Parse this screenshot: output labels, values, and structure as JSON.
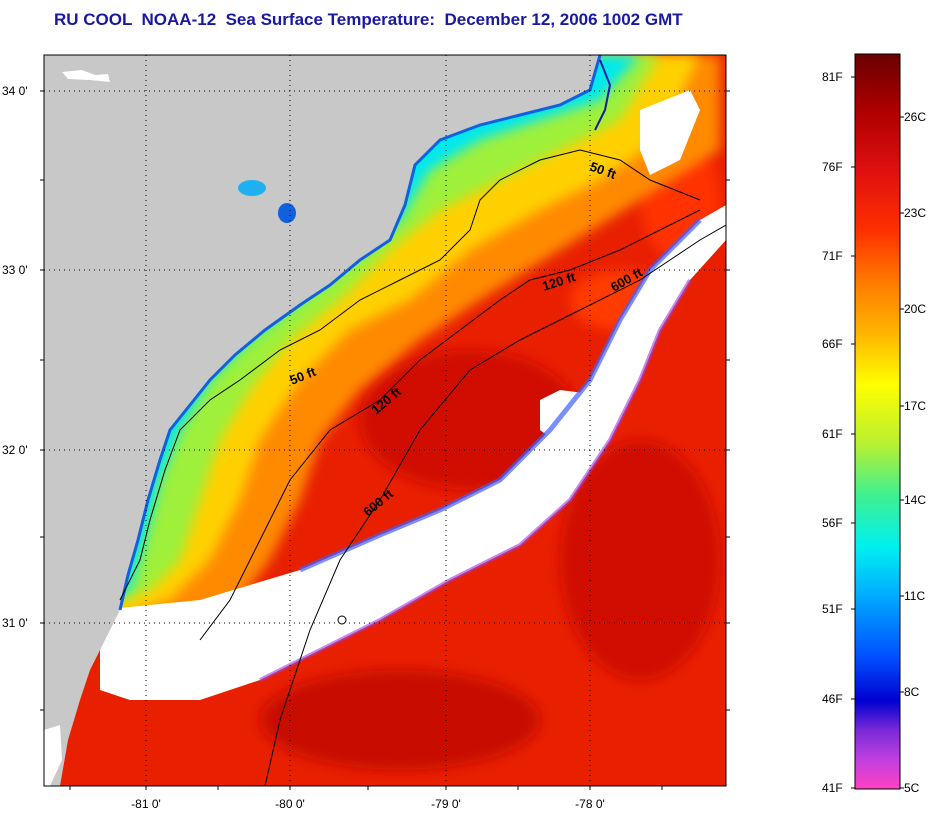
{
  "title": "RU COOL  NOAA-12  Sea Surface Temperature:  December 12, 2006 1002 GMT",
  "map": {
    "lat_labels": [
      "34 0'",
      "33 0'",
      "32 0'",
      "31 0'"
    ],
    "lon_labels": [
      "-81 0'",
      "-80 0'",
      "-79 0'",
      "-78 0'"
    ],
    "contours": [
      {
        "name": "contour-50ft-north",
        "label": "50 ft"
      },
      {
        "name": "contour-50ft-south",
        "label": "50 ft"
      },
      {
        "name": "contour-120ft-north",
        "label": "120 ft"
      },
      {
        "name": "contour-120ft-south",
        "label": "120 ft"
      },
      {
        "name": "contour-600ft-north",
        "label": "600 ft"
      },
      {
        "name": "contour-600ft-south",
        "label": "600 ft"
      }
    ]
  },
  "colorbar": {
    "fahrenheit_labels": [
      "81F",
      "76F",
      "71F",
      "66F",
      "61F",
      "56F",
      "51F",
      "46F",
      "41F"
    ],
    "celsius_labels": [
      "26C",
      "23C",
      "20C",
      "17C",
      "14C",
      "11C",
      "8C",
      "5C"
    ],
    "colors": [
      "#6b0000",
      "#b00000",
      "#e01010",
      "#ff4a00",
      "#ff8a00",
      "#ffc800",
      "#ffff00",
      "#b8f030",
      "#40f090",
      "#00f0f0",
      "#00a8ff",
      "#0050ff",
      "#0000d0",
      "#7a2ad8",
      "#c040e0",
      "#ff40c0"
    ]
  }
}
